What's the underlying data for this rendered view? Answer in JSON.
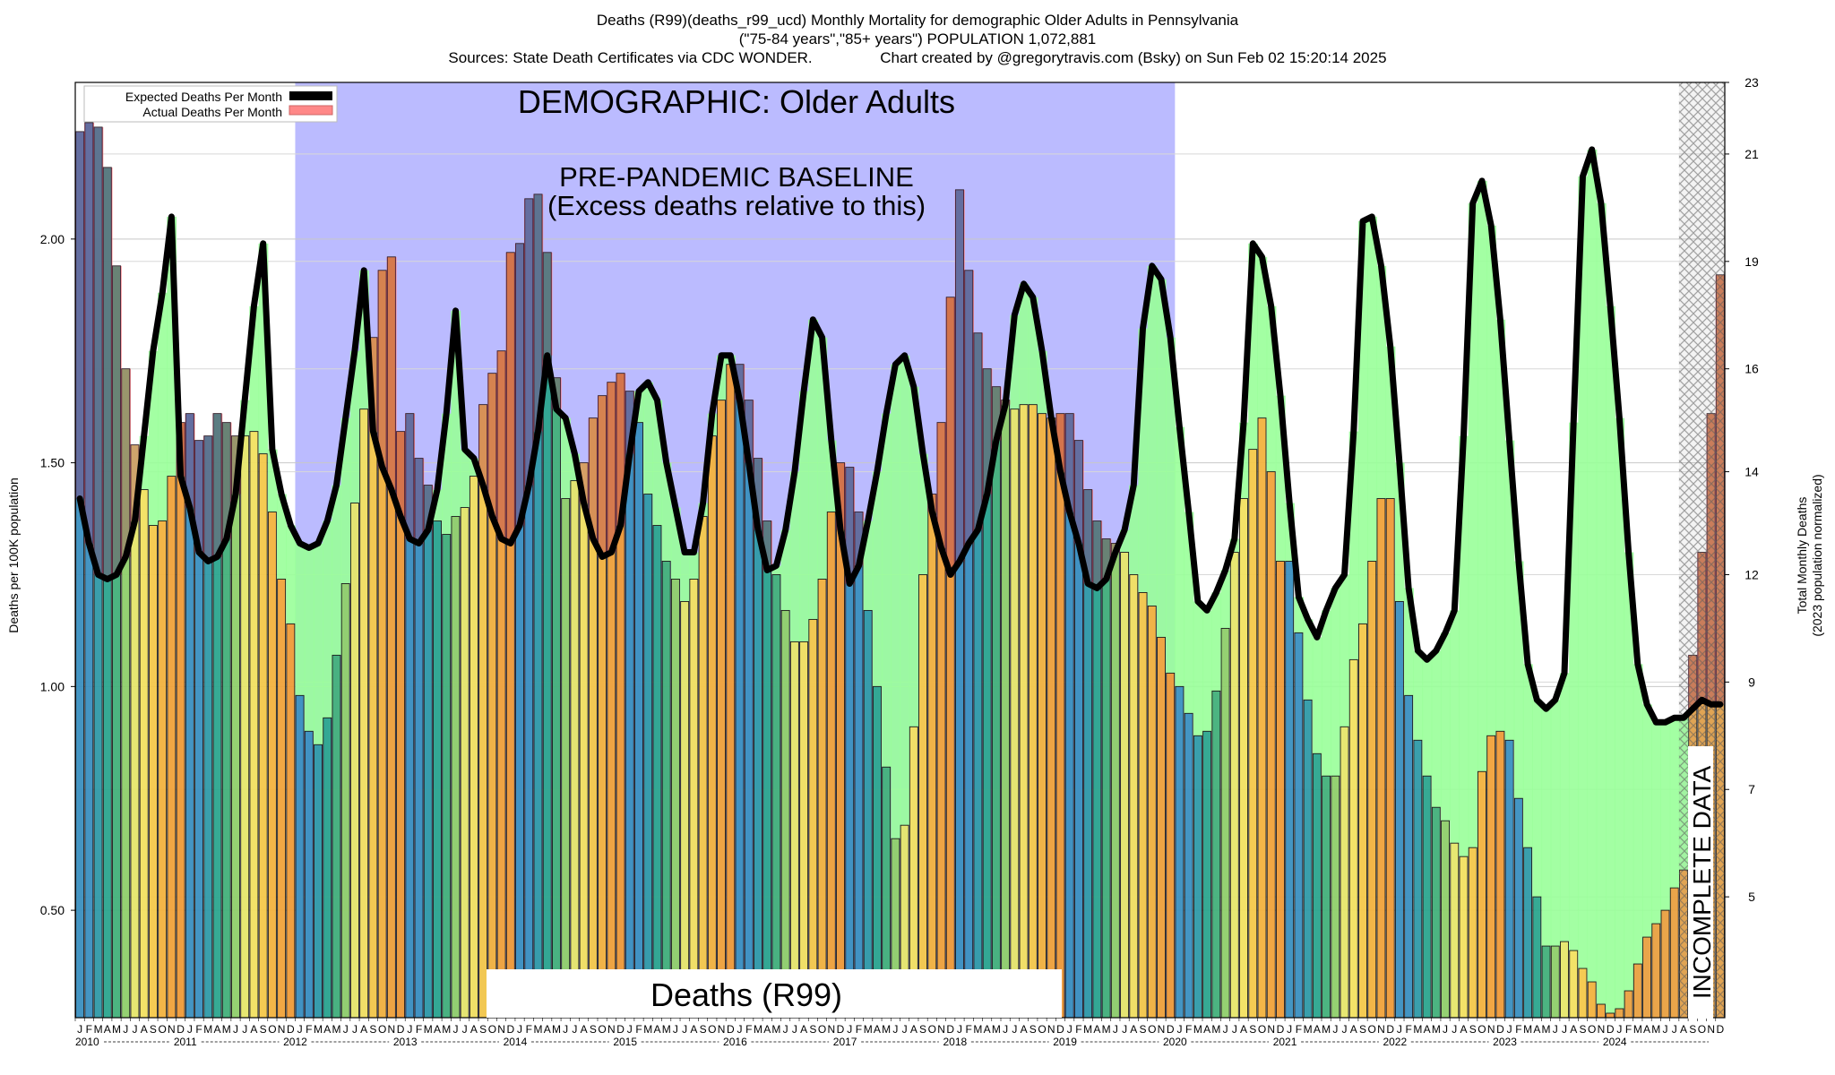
{
  "title_lines": [
    "Deaths (R99)(deaths_r99_ucd) Monthly Mortality for demographic Older Adults in Pennsylvania",
    "(\"75-84 years\",\"85+ years\") POPULATION 1,072,881",
    "Sources: State Death Certificates via CDC WONDER.                Chart created by @gregorytravis.com (Bsky) on Sun Feb 02 15:20:14 2025"
  ],
  "annotations": {
    "demographic": "DEMOGRAPHIC: Older Adults",
    "baseline_line1": "PRE-PANDEMIC BASELINE",
    "baseline_line2": "(Excess deaths relative to this)",
    "cause": "Deaths (R99)",
    "incomplete": "INCOMPLETE DATA"
  },
  "legend": {
    "expected": "Expected Deaths Per Month",
    "actual": "Actual Deaths Per Month"
  },
  "axes": {
    "ylabel_left": "Deaths per 100K population",
    "ylabel_right_1": "Total Monthly Deaths",
    "ylabel_right_2": "(2023 population normalized)"
  },
  "colors": {
    "baseline_band": "#bbbbff",
    "excess_fill": "#ff8888",
    "deficit_fill": "#99ff99",
    "expected_line": "#000000",
    "incomplete_hatch": "#444444"
  },
  "chart_data": {
    "type": "bar",
    "start": "2010-01",
    "months": 180,
    "ylim": [
      0.26,
      2.35
    ],
    "yticks": [
      0.5,
      1.0,
      1.5,
      2.0
    ],
    "ytick_labels": [
      "0.50",
      "1.00",
      "1.50",
      "2.00"
    ],
    "right_ticks": [
      5,
      7,
      9,
      12,
      14,
      16,
      19,
      21,
      23
    ],
    "right_tick_values": [
      0.53,
      0.77,
      1.01,
      1.25,
      1.48,
      1.71,
      1.95,
      2.19,
      2.43
    ],
    "month_letters": [
      "J",
      "F",
      "M",
      "A",
      "M",
      "J",
      "J",
      "A",
      "S",
      "O",
      "N",
      "D"
    ],
    "years": [
      "2010",
      "2011",
      "2012",
      "2013",
      "2014",
      "2015",
      "2016",
      "2017",
      "2018",
      "2019",
      "2020",
      "2021",
      "2022",
      "2023",
      "2024"
    ],
    "baseline_period": [
      "2012-01",
      "2019-12"
    ],
    "incomplete_from": "2024-08",
    "series": [
      {
        "name": "Actual Deaths Per Month",
        "values": [
          2.24,
          2.26,
          2.25,
          2.16,
          1.94,
          1.71,
          1.54,
          1.44,
          1.36,
          1.37,
          1.47,
          1.59,
          1.61,
          1.55,
          1.56,
          1.61,
          1.59,
          1.56,
          1.56,
          1.57,
          1.52,
          1.39,
          1.24,
          1.14,
          0.98,
          0.9,
          0.87,
          0.93,
          1.07,
          1.23,
          1.41,
          1.62,
          1.78,
          1.93,
          1.96,
          1.57,
          1.61,
          1.51,
          1.45,
          1.37,
          1.34,
          1.38,
          1.4,
          1.47,
          1.63,
          1.7,
          1.75,
          1.97,
          1.99,
          2.09,
          2.1,
          1.97,
          1.69,
          1.42,
          1.46,
          1.5,
          1.6,
          1.65,
          1.68,
          1.7,
          1.66,
          1.59,
          1.43,
          1.36,
          1.28,
          1.24,
          1.19,
          1.24,
          1.38,
          1.56,
          1.64,
          1.72,
          1.72,
          1.64,
          1.51,
          1.37,
          1.25,
          1.17,
          1.1,
          1.1,
          1.15,
          1.24,
          1.39,
          1.5,
          1.49,
          1.39,
          1.17,
          1.0,
          0.82,
          0.66,
          0.69,
          0.91,
          1.25,
          1.43,
          1.59,
          1.87,
          2.11,
          1.93,
          1.79,
          1.71,
          1.67,
          1.64,
          1.62,
          1.63,
          1.63,
          1.61,
          1.6,
          1.61,
          1.61,
          1.55,
          1.44,
          1.37,
          1.33,
          1.32,
          1.3,
          1.25,
          1.21,
          1.18,
          1.11,
          1.03,
          1.0,
          0.94,
          0.89,
          0.9,
          0.99,
          1.13,
          1.3,
          1.42,
          1.53,
          1.6,
          1.48,
          1.28,
          1.28,
          1.12,
          0.97,
          0.85,
          0.8,
          0.8,
          0.91,
          1.06,
          1.14,
          1.28,
          1.42,
          1.42,
          1.19,
          0.98,
          0.88,
          0.8,
          0.73,
          0.7,
          0.65,
          0.62,
          0.64,
          0.81,
          0.89,
          0.9,
          0.88,
          0.75,
          0.64,
          0.53,
          0.42,
          0.42,
          0.43,
          0.41,
          0.37,
          0.34,
          0.29,
          0.27,
          0.28,
          0.32,
          0.38,
          0.44,
          0.47,
          0.5,
          0.55,
          0.59,
          1.07,
          1.3,
          1.61,
          1.92
        ]
      },
      {
        "name": "Expected Deaths Per Month",
        "values": [
          1.42,
          1.32,
          1.25,
          1.24,
          1.25,
          1.29,
          1.37,
          1.56,
          1.75,
          1.88,
          2.05,
          1.47,
          1.4,
          1.3,
          1.28,
          1.29,
          1.33,
          1.43,
          1.64,
          1.85,
          1.99,
          1.53,
          1.43,
          1.36,
          1.32,
          1.31,
          1.32,
          1.37,
          1.45,
          1.6,
          1.75,
          1.93,
          1.57,
          1.49,
          1.44,
          1.38,
          1.33,
          1.32,
          1.35,
          1.44,
          1.61,
          1.84,
          1.53,
          1.51,
          1.45,
          1.38,
          1.33,
          1.32,
          1.36,
          1.45,
          1.57,
          1.74,
          1.62,
          1.6,
          1.52,
          1.41,
          1.33,
          1.29,
          1.3,
          1.36,
          1.52,
          1.66,
          1.68,
          1.64,
          1.5,
          1.4,
          1.3,
          1.3,
          1.41,
          1.61,
          1.74,
          1.74,
          1.64,
          1.5,
          1.35,
          1.26,
          1.27,
          1.35,
          1.48,
          1.66,
          1.82,
          1.78,
          1.55,
          1.35,
          1.23,
          1.27,
          1.37,
          1.48,
          1.61,
          1.72,
          1.74,
          1.67,
          1.52,
          1.39,
          1.31,
          1.25,
          1.28,
          1.32,
          1.35,
          1.43,
          1.55,
          1.63,
          1.83,
          1.9,
          1.87,
          1.75,
          1.6,
          1.48,
          1.39,
          1.32,
          1.23,
          1.22,
          1.24,
          1.3,
          1.35,
          1.45,
          1.8,
          1.94,
          1.91,
          1.78,
          1.58,
          1.39,
          1.19,
          1.17,
          1.21,
          1.26,
          1.33,
          1.59,
          1.99,
          1.96,
          1.85,
          1.65,
          1.41,
          1.2,
          1.15,
          1.11,
          1.17,
          1.22,
          1.25,
          1.57,
          2.04,
          2.05,
          1.94,
          1.76,
          1.5,
          1.22,
          1.08,
          1.06,
          1.08,
          1.12,
          1.17,
          1.56,
          2.08,
          2.13,
          2.03,
          1.82,
          1.55,
          1.28,
          1.05,
          0.97,
          0.95,
          0.97,
          1.03,
          1.59,
          2.14,
          2.2,
          2.08,
          1.85,
          1.6,
          1.3,
          1.05,
          0.96,
          0.92,
          0.92,
          0.93,
          0.93,
          0.95,
          0.97,
          0.96,
          0.96
        ]
      }
    ]
  }
}
